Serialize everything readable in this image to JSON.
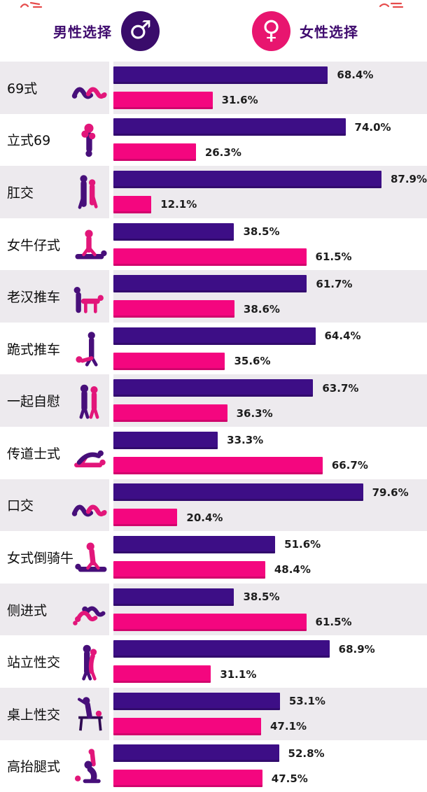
{
  "header": {
    "male_label": "男性选择",
    "female_label": "女性选择",
    "male_symbol": "♂",
    "female_symbol": "♀"
  },
  "colors": {
    "male_bar": "#3d0e86",
    "female_bar": "#f4067f",
    "male_badge": "#3a0c6b",
    "female_badge": "#e8156f",
    "header_text": "#3f0b6e",
    "stripe": "#edeaee",
    "icon_purple": "#470f7a",
    "icon_pink": "#e2167a",
    "icon_dark": "#2f0a52",
    "artifact_red": "#e02020"
  },
  "chart_data": {
    "type": "bar",
    "orientation": "horizontal",
    "unit": "%",
    "xlim": [
      0,
      100
    ],
    "grid": false,
    "legend_position": "top",
    "legend": [
      "男性选择",
      "女性选择"
    ],
    "categories": [
      "69式",
      "立式69",
      "肛交",
      "女牛仔式",
      "老汉推车",
      "跪式推车",
      "一起自慰",
      "传道士式",
      "口交",
      "女式倒骑牛",
      "侧进式",
      "站立性交",
      "桌上性交",
      "高抬腿式"
    ],
    "series": [
      {
        "name": "男性选择",
        "color": "#3d0e86",
        "values": [
          68.4,
          74.0,
          87.9,
          38.5,
          61.7,
          64.4,
          63.7,
          33.3,
          79.6,
          51.6,
          38.5,
          68.9,
          53.1,
          52.8
        ]
      },
      {
        "name": "女性选择",
        "color": "#f4067f",
        "values": [
          31.6,
          26.3,
          12.1,
          61.5,
          38.6,
          35.6,
          36.3,
          66.7,
          20.4,
          48.4,
          61.5,
          31.1,
          47.1,
          47.5
        ]
      }
    ],
    "value_labels": true
  },
  "rows": [
    {
      "label": "69式",
      "icon": "lying-pair-icon",
      "male": "68.4%",
      "female": "31.6%"
    },
    {
      "label": "立式69",
      "icon": "standing-69-icon",
      "male": "74.0%",
      "female": "26.3%"
    },
    {
      "label": "肛交",
      "icon": "standing-behind-icon",
      "male": "87.9%",
      "female": "12.1%"
    },
    {
      "label": "女牛仔式",
      "icon": "cowgirl-icon",
      "male": "38.5%",
      "female": "61.5%"
    },
    {
      "label": "老汉推车",
      "icon": "doggy-icon",
      "male": "61.7%",
      "female": "38.6%"
    },
    {
      "label": "跪式推车",
      "icon": "wheelbarrow-icon",
      "male": "64.4%",
      "female": "35.6%"
    },
    {
      "label": "一起自慰",
      "icon": "side-by-side-icon",
      "male": "63.7%",
      "female": "36.3%"
    },
    {
      "label": "传道士式",
      "icon": "missionary-icon",
      "male": "33.3%",
      "female": "66.7%"
    },
    {
      "label": "口交",
      "icon": "lying-pair-icon",
      "male": "79.6%",
      "female": "20.4%"
    },
    {
      "label": "女式倒骑牛",
      "icon": "reverse-cowgirl-icon",
      "male": "51.6%",
      "female": "48.4%"
    },
    {
      "label": "侧进式",
      "icon": "side-lying-icon",
      "male": "38.5%",
      "female": "61.5%"
    },
    {
      "label": "站立性交",
      "icon": "standing-embrace-icon",
      "male": "68.9%",
      "female": "31.1%"
    },
    {
      "label": "桌上性交",
      "icon": "table-icon",
      "male": "53.1%",
      "female": "47.1%"
    },
    {
      "label": "高抬腿式",
      "icon": "raised-leg-icon",
      "male": "52.8%",
      "female": "47.5%"
    }
  ]
}
